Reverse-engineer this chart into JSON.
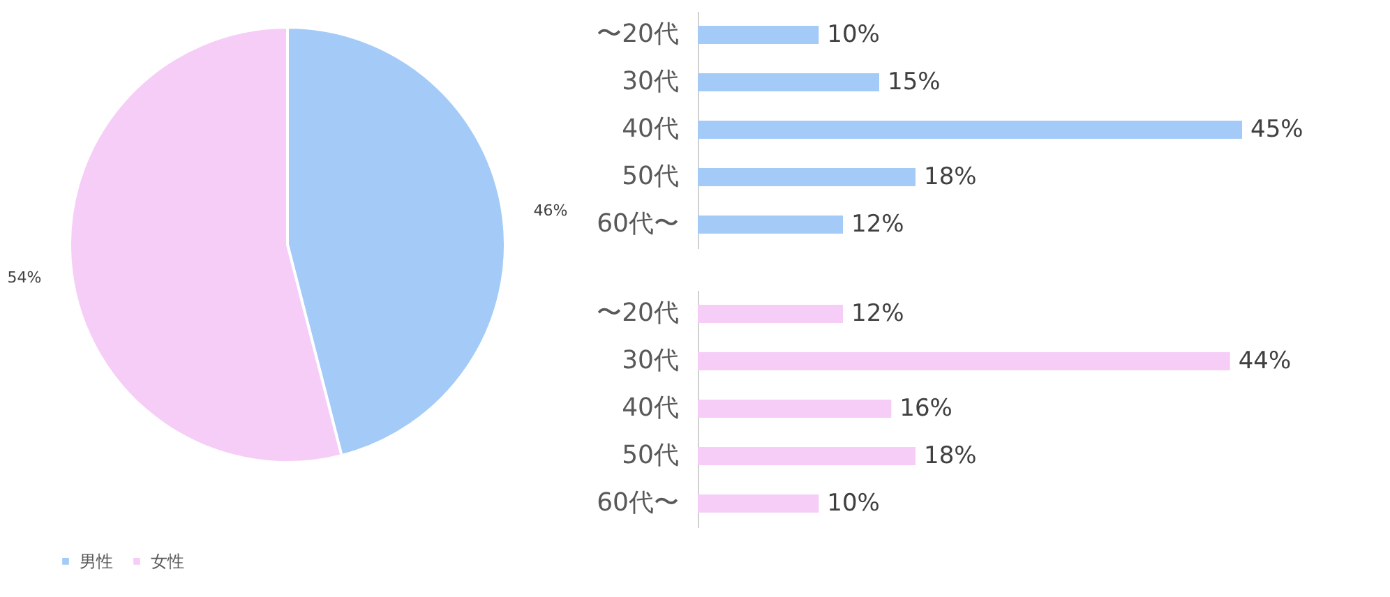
{
  "chart_data": [
    {
      "type": "pie",
      "categories": [
        "男性",
        "女性"
      ],
      "values": [
        46,
        54
      ],
      "colors": [
        "#a4cbf7",
        "#f5cdf7"
      ],
      "value_labels": [
        "46%",
        "54%"
      ],
      "legend": "bottom"
    },
    {
      "type": "bar",
      "orientation": "horizontal",
      "categories": [
        "〜20代",
        "30代",
        "40代",
        "50代",
        "60代〜"
      ],
      "values": [
        10,
        15,
        45,
        18,
        12
      ],
      "color": "#a4cbf7",
      "value_labels": [
        "10%",
        "15%",
        "45%",
        "18%",
        "12%"
      ]
    },
    {
      "type": "bar",
      "orientation": "horizontal",
      "categories": [
        "〜20代",
        "30代",
        "40代",
        "50代",
        "60代〜"
      ],
      "values": [
        12,
        44,
        16,
        18,
        10
      ],
      "color": "#f5cdf7",
      "value_labels": [
        "12%",
        "44%",
        "16%",
        "18%",
        "10%"
      ]
    }
  ]
}
